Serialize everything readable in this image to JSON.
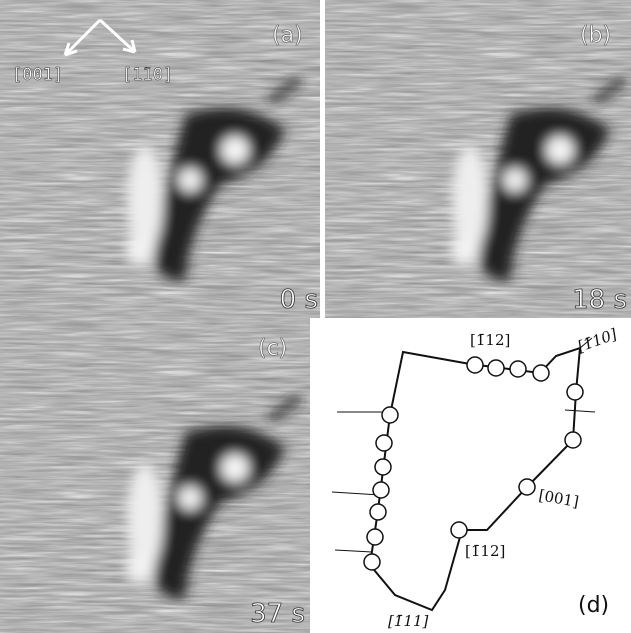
{
  "panels": [
    {
      "label": "(a)",
      "time": "0 s",
      "directions": [
        "[001]",
        "[1̄10]"
      ]
    },
    {
      "label": "(b)",
      "time": "18 s"
    },
    {
      "label": "(c)",
      "time": "37 s"
    },
    {
      "label": "(d)",
      "directions": [
        "[1̄12]",
        "[1̄10]",
        "[001]",
        "[1̄12]",
        "[1̄11]"
      ]
    }
  ]
}
